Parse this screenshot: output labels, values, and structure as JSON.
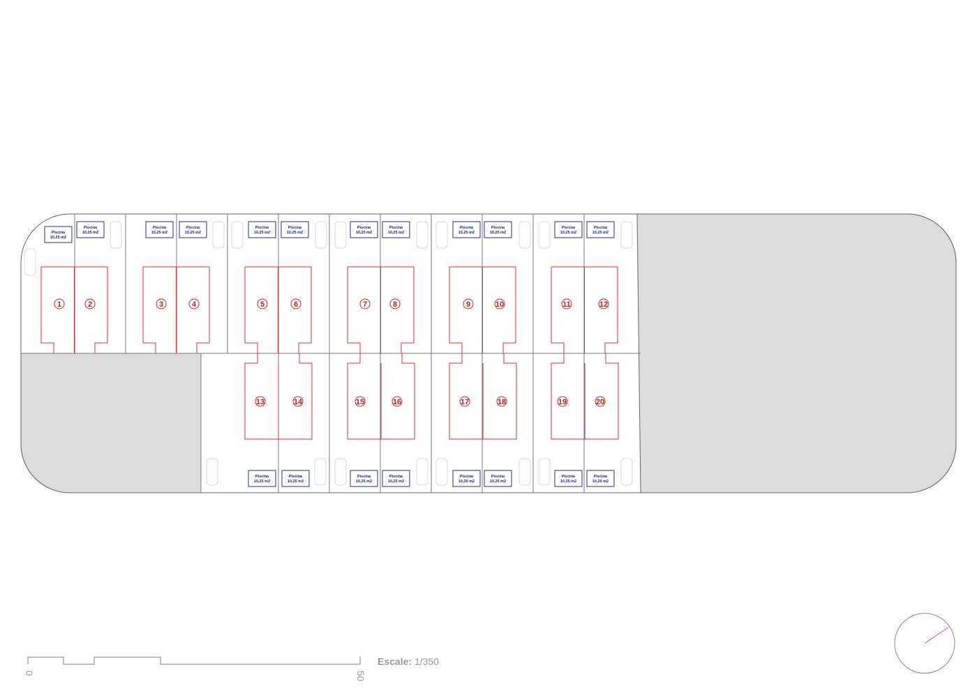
{
  "plan": {
    "lots_top": [
      "1",
      "2",
      "3",
      "4",
      "5",
      "6",
      "7",
      "8",
      "9",
      "10",
      "11",
      "12"
    ],
    "lots_bottom": [
      "13",
      "14",
      "15",
      "16",
      "17",
      "18",
      "19",
      "20"
    ],
    "pool_label": "Piscina",
    "pool_area": "10,25 m2",
    "colors": {
      "house_outline": "#e03030",
      "pool_outline": "#2a2a9a",
      "common_area": "#dcdcdc",
      "north_arrow": "#e040a0"
    }
  },
  "scale_bar": {
    "label": "Escale:",
    "value": "1/350",
    "start": "0",
    "end": "50"
  },
  "north_indicator": {
    "icon": "north-arrow-icon"
  }
}
